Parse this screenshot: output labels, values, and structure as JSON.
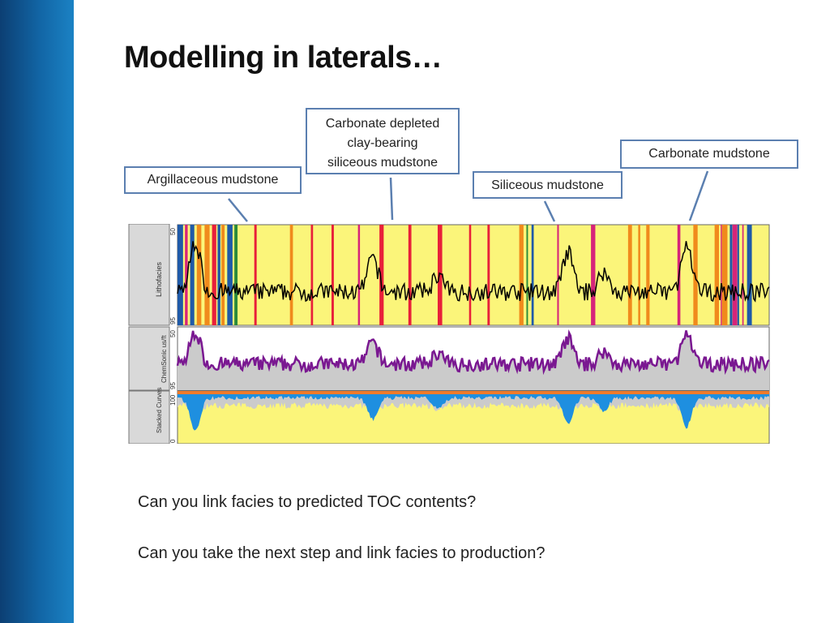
{
  "slide": {
    "title": "Modelling in laterals…"
  },
  "callouts": {
    "argillaceous": "Argillaceous mudstone",
    "carbonate_depleted": [
      "Carbonate depleted",
      "clay-bearing",
      "siliceous mudstone"
    ],
    "siliceous": "Siliceous mudstone",
    "carbonate": "Carbonate mudstone"
  },
  "log": {
    "tracks": [
      {
        "label": "Lithofacies",
        "scale_top": "50",
        "scale_bottom": "95"
      },
      {
        "label": "ChemSonic us/ft",
        "scale_top": "50",
        "scale_bottom": "95"
      },
      {
        "label": "Stacked Curves",
        "scale_top": "100",
        "scale_bottom": "0"
      }
    ],
    "colors": {
      "siliceous": "#fbf57a",
      "carbonate": "#1f5aa8",
      "carbonate_depleted": "#f08a1c",
      "argillaceous": "#e8203a",
      "magenta": "#d6247a",
      "curve_purple": "#7a1891",
      "fill_grey": "#cbcbcb",
      "stack_blue": "#1e8fe0",
      "stack_yellow": "#fbf57a",
      "stack_orange": "#f07b2a"
    }
  },
  "notes": [
    "Can you link facies to predicted TOC contents?",
    "Can you take the next step and link facies to production?"
  ]
}
